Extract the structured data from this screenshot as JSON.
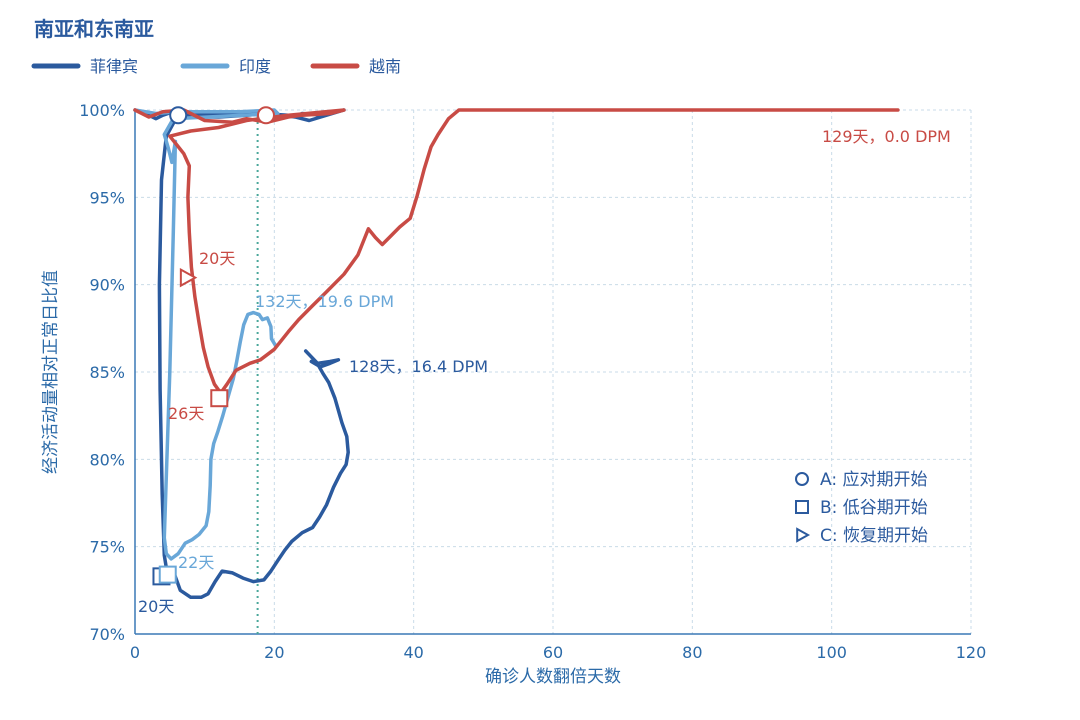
{
  "chart_data": {
    "type": "line",
    "title": "南亚和东南亚",
    "xlabel": "确诊人数翻倍天数",
    "ylabel": "经济活动量相对正常日比值",
    "xlim": [
      0,
      120
    ],
    "ylim": [
      70,
      100
    ],
    "x_ticks": [
      0,
      20,
      40,
      60,
      80,
      100,
      120
    ],
    "y_ticks": [
      70,
      75,
      80,
      85,
      90,
      95,
      100
    ],
    "x_tick_labels": [
      "0",
      "20",
      "40",
      "60",
      "80",
      "100",
      "120"
    ],
    "y_tick_labels": [
      "70%",
      "75%",
      "80%",
      "85%",
      "90%",
      "95%",
      "100%"
    ],
    "grid": true,
    "legend_position": "top-left",
    "reference_line_x": 17.6,
    "series": [
      {
        "name": "菲律宾",
        "color": "#2b5a9e",
        "points": [
          [
            0,
            100
          ],
          [
            1.5,
            99.8
          ],
          [
            3,
            99.5
          ],
          [
            4,
            99.7
          ],
          [
            5.5,
            99.9
          ],
          [
            7,
            99.7
          ],
          [
            9,
            99.6
          ],
          [
            12,
            99.6
          ],
          [
            16,
            99.7
          ],
          [
            19,
            99.8
          ],
          [
            21,
            99.7
          ],
          [
            23,
            99.6
          ],
          [
            24,
            99.8
          ],
          [
            27,
            99.7
          ],
          [
            29,
            99.9
          ],
          [
            30,
            100
          ],
          [
            25,
            99.4
          ],
          [
            22,
            99.7
          ],
          [
            18,
            99.8
          ],
          [
            12,
            99.7
          ],
          [
            8,
            99.8
          ],
          [
            6,
            99.6
          ],
          [
            4.5,
            98.5
          ],
          [
            3.8,
            96
          ],
          [
            3.5,
            90
          ],
          [
            3.6,
            84
          ],
          [
            3.9,
            78
          ],
          [
            4.2,
            74.5
          ],
          [
            4.5,
            73.8
          ],
          [
            5.5,
            73.6
          ],
          [
            6.5,
            72.5
          ],
          [
            8,
            72.1
          ],
          [
            9.5,
            72.1
          ],
          [
            10.5,
            72.3
          ],
          [
            11.5,
            73
          ],
          [
            12.5,
            73.6
          ],
          [
            14,
            73.5
          ],
          [
            15.5,
            73.2
          ],
          [
            17,
            73
          ],
          [
            18.5,
            73.1
          ],
          [
            19.5,
            73.6
          ],
          [
            20.5,
            74.2
          ],
          [
            21.5,
            74.8
          ],
          [
            22.5,
            75.3
          ],
          [
            24,
            75.8
          ],
          [
            25.5,
            76.1
          ],
          [
            26.5,
            76.7
          ],
          [
            27.5,
            77.4
          ],
          [
            28.5,
            78.4
          ],
          [
            29.5,
            79.2
          ],
          [
            30.3,
            79.7
          ],
          [
            30.6,
            80.4
          ],
          [
            30.4,
            81.3
          ],
          [
            29.7,
            82.1
          ],
          [
            29.2,
            82.8
          ],
          [
            28.7,
            83.5
          ],
          [
            27.8,
            84.4
          ],
          [
            27,
            84.9
          ],
          [
            26.3,
            85.4
          ],
          [
            25.3,
            85.6
          ],
          [
            26.6,
            85.3
          ],
          [
            28,
            85.5
          ],
          [
            29.2,
            85.7
          ],
          [
            28,
            85.6
          ],
          [
            26.2,
            85.5
          ],
          [
            24.5,
            86.2
          ]
        ],
        "end_label": "128天，16.4 DPM",
        "markers": [
          {
            "type": "circle",
            "x": 6.2,
            "y": 99.7
          },
          {
            "type": "square",
            "x": 3.8,
            "y": 73.3,
            "label": "20天"
          }
        ]
      },
      {
        "name": "印度",
        "color": "#69a7d8",
        "points": [
          [
            0,
            100
          ],
          [
            3,
            99.8
          ],
          [
            6,
            99.9
          ],
          [
            10,
            99.9
          ],
          [
            15,
            99.9
          ],
          [
            20,
            100
          ],
          [
            20.5,
            99.8
          ],
          [
            5.5,
            99.5
          ],
          [
            4.2,
            98.6
          ],
          [
            4.8,
            97.8
          ],
          [
            5.3,
            97
          ],
          [
            5.8,
            98.2
          ],
          [
            5.5,
            93
          ],
          [
            5,
            85
          ],
          [
            4.5,
            79
          ],
          [
            4.2,
            75.5
          ],
          [
            4.5,
            74.6
          ],
          [
            5.2,
            74.3
          ],
          [
            6.2,
            74.6
          ],
          [
            7.2,
            75.2
          ],
          [
            8.2,
            75.4
          ],
          [
            9.2,
            75.7
          ],
          [
            10.2,
            76.2
          ],
          [
            10.6,
            77
          ],
          [
            10.8,
            78.5
          ],
          [
            10.9,
            80
          ],
          [
            11.3,
            80.9
          ],
          [
            11.9,
            81.6
          ],
          [
            12.6,
            82.5
          ],
          [
            13.3,
            83.5
          ],
          [
            14.1,
            84.6
          ],
          [
            14.6,
            85.6
          ],
          [
            15.1,
            86.7
          ],
          [
            15.6,
            87.7
          ],
          [
            16.2,
            88.3
          ],
          [
            17,
            88.4
          ],
          [
            17.8,
            88.3
          ],
          [
            18.3,
            88
          ],
          [
            19,
            88.1
          ],
          [
            19.5,
            87.6
          ],
          [
            19.6,
            86.9
          ],
          [
            20.2,
            86.5
          ]
        ],
        "end_label": "132天，19.6 DPM",
        "markers": [
          {
            "type": "square",
            "x": 4.7,
            "y": 73.4,
            "label": "22天"
          }
        ]
      },
      {
        "name": "越南",
        "color": "#c84b45",
        "points": [
          [
            0,
            100
          ],
          [
            2,
            99.6
          ],
          [
            4,
            99.9
          ],
          [
            7,
            100
          ],
          [
            10,
            99.4
          ],
          [
            14,
            99.3
          ],
          [
            16,
            99.5
          ],
          [
            19,
            99.3
          ],
          [
            22,
            99.6
          ],
          [
            24,
            99.7
          ],
          [
            28,
            99.8
          ],
          [
            30,
            100
          ],
          [
            22,
            99.7
          ],
          [
            16,
            99.4
          ],
          [
            12,
            99
          ],
          [
            8,
            98.8
          ],
          [
            5,
            98.5
          ],
          [
            6,
            98
          ],
          [
            7,
            97.5
          ],
          [
            7.8,
            96.8
          ],
          [
            7.6,
            95
          ],
          [
            7.8,
            93
          ],
          [
            8.1,
            91
          ],
          [
            8.6,
            89.3
          ],
          [
            9.2,
            87.8
          ],
          [
            9.8,
            86.4
          ],
          [
            10.5,
            85.3
          ],
          [
            11.4,
            84.3
          ],
          [
            12.3,
            83.8
          ],
          [
            13.2,
            84.3
          ],
          [
            14.5,
            85.1
          ],
          [
            16.5,
            85.5
          ],
          [
            18,
            85.7
          ],
          [
            20,
            86.3
          ],
          [
            22,
            87.3
          ],
          [
            23.5,
            88
          ],
          [
            25.5,
            88.8
          ],
          [
            27.5,
            89.6
          ],
          [
            30,
            90.6
          ],
          [
            32,
            91.7
          ],
          [
            33,
            92.7
          ],
          [
            33.5,
            93.2
          ],
          [
            34.5,
            92.7
          ],
          [
            35.5,
            92.3
          ],
          [
            36.5,
            92.7
          ],
          [
            38,
            93.3
          ],
          [
            39.5,
            93.8
          ],
          [
            40.5,
            95.1
          ],
          [
            41.5,
            96.6
          ],
          [
            42.5,
            97.9
          ],
          [
            43.5,
            98.6
          ],
          [
            45,
            99.5
          ],
          [
            46.5,
            100
          ],
          [
            60,
            100
          ],
          [
            80,
            100
          ],
          [
            100,
            100
          ],
          [
            109.5,
            100
          ]
        ],
        "end_label": "129天，0.0 DPM",
        "markers": [
          {
            "type": "circle",
            "x": 18.8,
            "y": 99.7
          },
          {
            "type": "square",
            "x": 12.1,
            "y": 83.5,
            "label": "26天"
          },
          {
            "type": "triangle",
            "x": 7.5,
            "y": 90.4,
            "label": "20天"
          }
        ]
      }
    ],
    "marker_legend": [
      {
        "symbol": "circle",
        "text": "A: 应对期开始"
      },
      {
        "symbol": "square",
        "text": "B: 低谷期开始"
      },
      {
        "symbol": "triangle",
        "text": "C: 恢复期开始"
      }
    ]
  }
}
